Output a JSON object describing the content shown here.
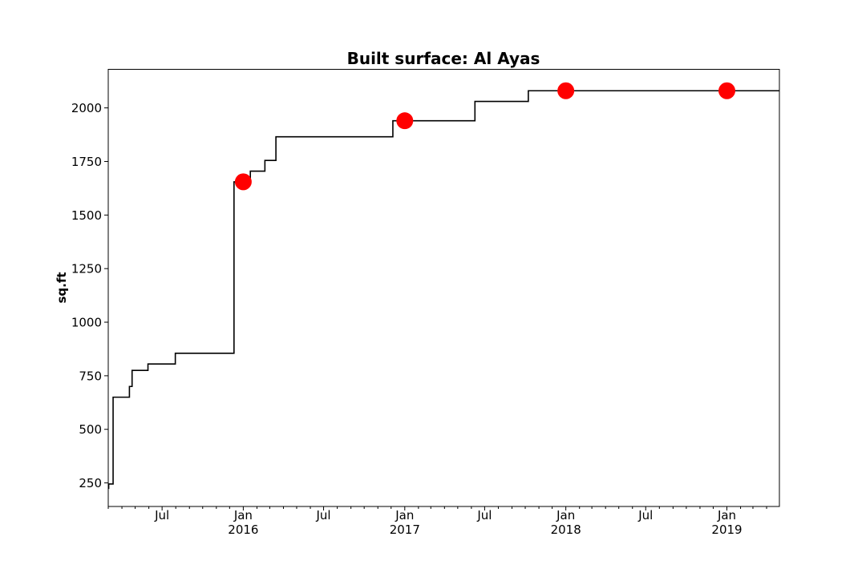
{
  "chart_data": {
    "type": "line",
    "title": "Built surface: Al Ayas",
    "xlabel": "",
    "ylabel": "sq.ft",
    "xlim": [
      "2015-03-01",
      "2019-04-30"
    ],
    "ylim": [
      140,
      2180
    ],
    "grid": false,
    "yticks": [
      250,
      500,
      750,
      1000,
      1250,
      1500,
      1750,
      2000
    ],
    "xticks": [
      {
        "date": "2015-07-01",
        "label": "Jul",
        "sublabel": ""
      },
      {
        "date": "2016-01-01",
        "label": "Jan",
        "sublabel": "2016"
      },
      {
        "date": "2016-07-01",
        "label": "Jul",
        "sublabel": ""
      },
      {
        "date": "2017-01-01",
        "label": "Jan",
        "sublabel": "2017"
      },
      {
        "date": "2017-07-01",
        "label": "Jul",
        "sublabel": ""
      },
      {
        "date": "2018-01-01",
        "label": "Jan",
        "sublabel": "2018"
      },
      {
        "date": "2018-07-01",
        "label": "Jul",
        "sublabel": ""
      },
      {
        "date": "2019-01-01",
        "label": "Jan",
        "sublabel": "2019"
      }
    ],
    "series": [
      {
        "kind": "step",
        "color": "#000000",
        "points": [
          {
            "x": "2015-03-01",
            "y": 225
          },
          {
            "x": "2015-03-02",
            "y": 245
          },
          {
            "x": "2015-03-12",
            "y": 650
          },
          {
            "x": "2015-04-18",
            "y": 700
          },
          {
            "x": "2015-04-24",
            "y": 775
          },
          {
            "x": "2015-05-30",
            "y": 805
          },
          {
            "x": "2015-07-31",
            "y": 855
          },
          {
            "x": "2015-12-11",
            "y": 1655
          },
          {
            "x": "2016-01-17",
            "y": 1705
          },
          {
            "x": "2016-02-19",
            "y": 1755
          },
          {
            "x": "2016-03-15",
            "y": 1865
          },
          {
            "x": "2016-12-05",
            "y": 1940
          },
          {
            "x": "2017-06-09",
            "y": 2030
          },
          {
            "x": "2017-10-08",
            "y": 2080
          },
          {
            "x": "2019-04-30",
            "y": 2080
          }
        ]
      },
      {
        "kind": "scatter",
        "color": "#ff0000",
        "points": [
          {
            "x": "2016-01-01",
            "y": 1655
          },
          {
            "x": "2017-01-01",
            "y": 1940
          },
          {
            "x": "2018-01-01",
            "y": 2080
          },
          {
            "x": "2019-01-01",
            "y": 2080
          }
        ]
      }
    ]
  }
}
